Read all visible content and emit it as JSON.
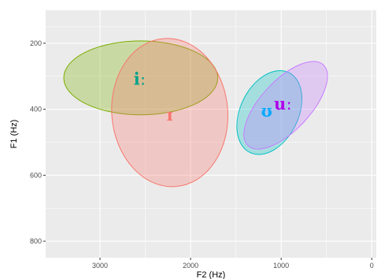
{
  "chart_data": {
    "type": "scatter",
    "xlabel": "F2 (Hz)",
    "ylabel": "F1 (Hz)",
    "xlim": [
      3600,
      -50
    ],
    "ylim": [
      100,
      850
    ],
    "x_reversed": true,
    "y_reversed": true,
    "x_ticks": [
      3000,
      2000,
      1000,
      0
    ],
    "y_ticks": [
      200,
      400,
      600,
      800
    ],
    "x_tick_labels": [
      "3000",
      "2000",
      "1000",
      "0"
    ],
    "y_tick_labels": [
      "200",
      "400",
      "600",
      "800"
    ],
    "grid": true,
    "legend": "none",
    "colors": {
      "panel_bg": "#EBEBEB",
      "grid": "#FFFFFF",
      "i_long": "#7CAE00",
      "i_short": "#F8766D",
      "u_short": "#00BFC4",
      "u_long": "#C77CFF",
      "label_i_long": "#00A18A",
      "label_i_short": "#F8766D",
      "label_u_short": "#00A9FF",
      "label_u_long": "#B000E8"
    },
    "series": [
      {
        "name": "iː",
        "center_f2": 2550,
        "center_f1": 305,
        "f2_radius": 850,
        "f1_radius": 112,
        "rotation": 0,
        "color_key": "i_long",
        "label_key": "label_i_long"
      },
      {
        "name": "ɪ",
        "center_f2": 2230,
        "center_f1": 410,
        "f2_radius": 640,
        "f1_radius": 225,
        "rotation": -5,
        "color_key": "i_short",
        "label_key": "label_i_short"
      },
      {
        "name": "ʊ",
        "center_f2": 1130,
        "center_f1": 410,
        "f2_radius": 490,
        "f1_radius": 88,
        "rotation": -64,
        "color_key": "u_short",
        "label_key": "label_u_short"
      },
      {
        "name": "uː",
        "center_f2": 950,
        "center_f1": 388,
        "f2_radius": 610,
        "f1_radius": 75,
        "rotation": -47,
        "color_key": "u_long",
        "label_key": "label_u_long"
      }
    ],
    "labels": [
      {
        "text": "iː",
        "f2": 2560,
        "f1": 308,
        "color_key": "label_i_long"
      },
      {
        "text": "ɪ",
        "f2": 2230,
        "f1": 416,
        "color_key": "label_i_short"
      },
      {
        "text": "ʊ",
        "f2": 1160,
        "f1": 405,
        "color_key": "label_u_short"
      },
      {
        "text": "uː",
        "f2": 980,
        "f1": 383,
        "color_key": "label_u_long"
      }
    ]
  }
}
